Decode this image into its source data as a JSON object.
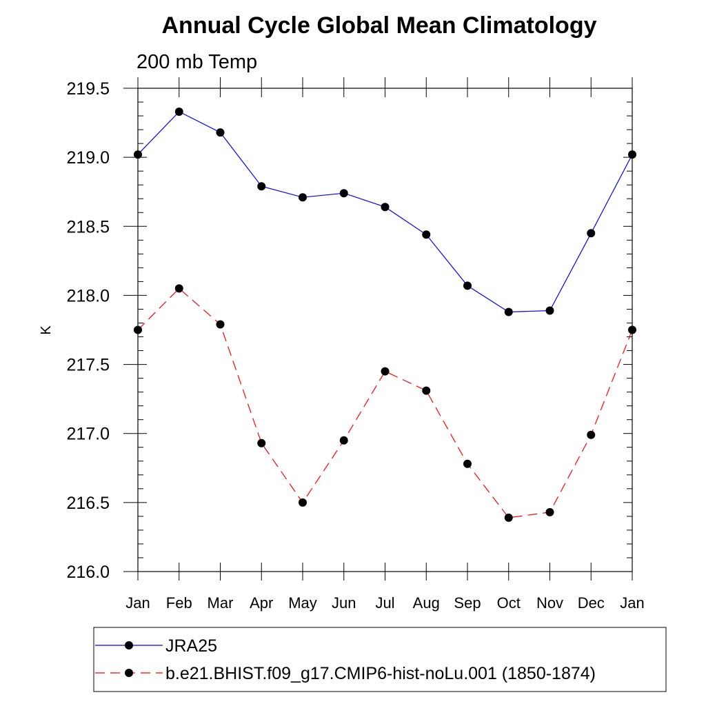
{
  "chart_data": {
    "type": "line",
    "title": "Annual Cycle Global Mean Climatology",
    "subtitle": "200 mb Temp",
    "xlabel": "",
    "ylabel": "K",
    "categories": [
      "Jan",
      "Feb",
      "Mar",
      "Apr",
      "May",
      "Jun",
      "Jul",
      "Aug",
      "Sep",
      "Oct",
      "Nov",
      "Dec",
      "Jan"
    ],
    "ylim": [
      216.0,
      219.5
    ],
    "yticks": [
      "216.0",
      "216.5",
      "217.0",
      "217.5",
      "218.0",
      "218.5",
      "219.0",
      "219.5"
    ],
    "grid": false,
    "legend_position": "bottom",
    "series": [
      {
        "name": "JRA25",
        "color": "#0000ff",
        "dash": "solid",
        "values": [
          219.02,
          219.33,
          219.18,
          218.79,
          218.71,
          218.74,
          218.64,
          218.44,
          218.07,
          217.88,
          217.89,
          218.45,
          219.02
        ]
      },
      {
        "name": "b.e21.BHIST.f09_g17.CMIP6-hist-noLu.001 (1850-1874)",
        "color": "#ff0000",
        "dash": "dashed",
        "values": [
          217.75,
          218.05,
          217.79,
          216.93,
          216.5,
          216.95,
          217.45,
          217.31,
          216.78,
          216.39,
          216.43,
          216.99,
          217.75
        ]
      }
    ]
  }
}
